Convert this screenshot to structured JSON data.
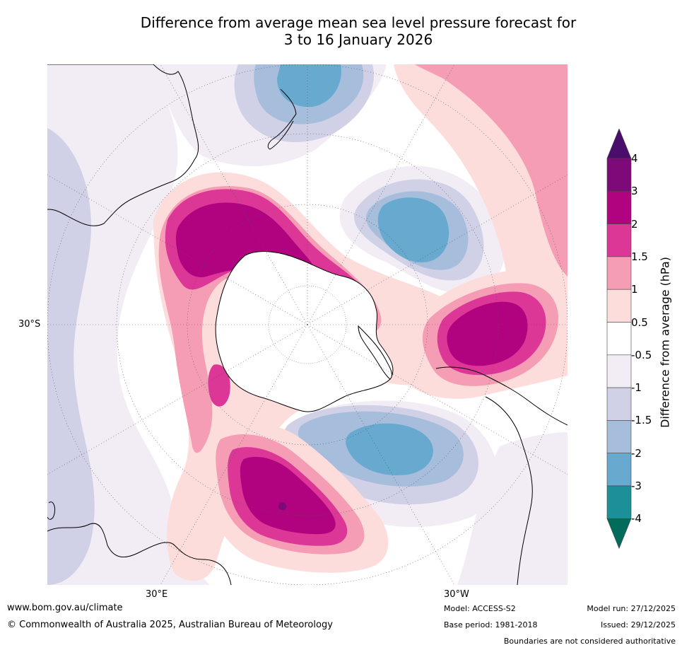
{
  "title": {
    "line1": "Difference from average mean sea level pressure forecast for",
    "line2": "3 to 16 January 2026"
  },
  "map": {
    "projection": "south polar stereographic",
    "latitude_label": "30°S",
    "longitude_labels": {
      "east": "30°E",
      "west": "30°W"
    }
  },
  "colorbar": {
    "title": "Difference from average (hPa)",
    "tick_labels": [
      "4",
      "3",
      "2",
      "1.5",
      "1",
      "0.5",
      "-0.5",
      "-1",
      "-1.5",
      "-2",
      "-3",
      "-4"
    ],
    "bins": [
      {
        "range": ">4",
        "color": "#4b0d6b"
      },
      {
        "range": "3 to 4",
        "color": "#7d0a78"
      },
      {
        "range": "2 to 3",
        "color": "#b1037f"
      },
      {
        "range": "1.5 to 2",
        "color": "#dc3797"
      },
      {
        "range": "1 to 1.5",
        "color": "#f59db5"
      },
      {
        "range": "0.5 to 1",
        "color": "#fddcdc"
      },
      {
        "range": "-0.5 to 0.5",
        "color": "#ffffff"
      },
      {
        "range": "-1 to -0.5",
        "color": "#f2ecf5"
      },
      {
        "range": "-1.5 to -1",
        "color": "#d0d1e6"
      },
      {
        "range": "-2 to -1.5",
        "color": "#a6bddb"
      },
      {
        "range": "-3 to -2",
        "color": "#67a9cf"
      },
      {
        "range": "-4 to -3",
        "color": "#1c9099"
      },
      {
        "range": "<-4",
        "color": "#016c59"
      }
    ]
  },
  "footer": {
    "website": "www.bom.gov.au/climate",
    "copyright": "© Commonwealth of Australia 2025, Australian Bureau of Meteorology",
    "model": "Model: ACCESS-S2",
    "base_period": "Base period: 1981-2018",
    "model_run": "Model run: 27/12/2025",
    "issued": "Issued: 29/12/2025",
    "disclaimer": "Boundaries are not considered authoritative"
  }
}
